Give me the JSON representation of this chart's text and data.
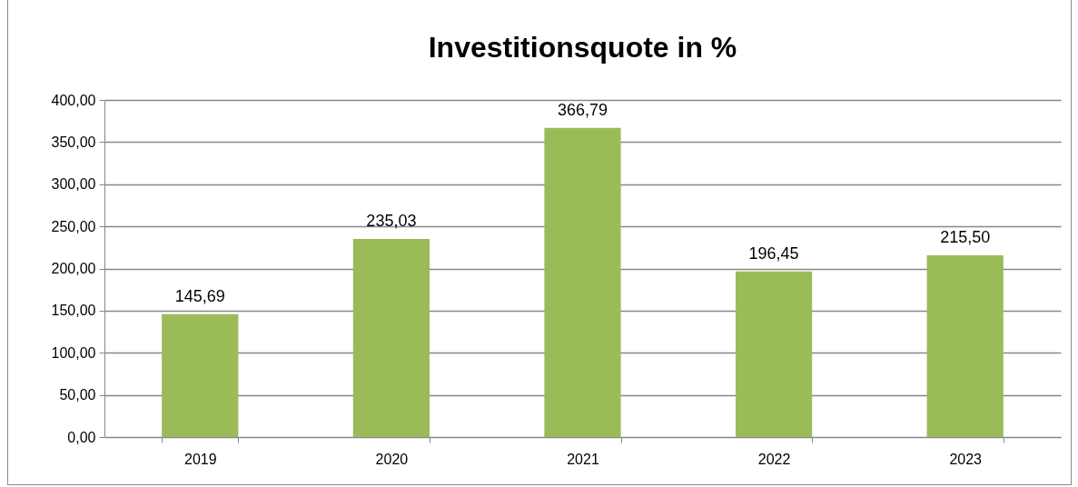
{
  "chart_data": {
    "type": "bar",
    "title": "Investitionsquote in %",
    "categories": [
      "2019",
      "2020",
      "2021",
      "2022",
      "2023"
    ],
    "values": [
      145.69,
      235.03,
      366.79,
      196.45,
      215.5
    ],
    "value_labels": [
      "145,69",
      "235,03",
      "366,79",
      "196,45",
      "215,50"
    ],
    "color": "#9bbb59",
    "ylim": [
      0,
      400
    ],
    "yticks": [
      {
        "value": 0,
        "label": "0,00"
      },
      {
        "value": 50,
        "label": "50,00"
      },
      {
        "value": 100,
        "label": "100,00"
      },
      {
        "value": 150,
        "label": "150,00"
      },
      {
        "value": 200,
        "label": "200,00"
      },
      {
        "value": 250,
        "label": "250,00"
      },
      {
        "value": 300,
        "label": "300,00"
      },
      {
        "value": 350,
        "label": "350,00"
      },
      {
        "value": 400,
        "label": "400,00"
      }
    ],
    "grid": "y"
  }
}
